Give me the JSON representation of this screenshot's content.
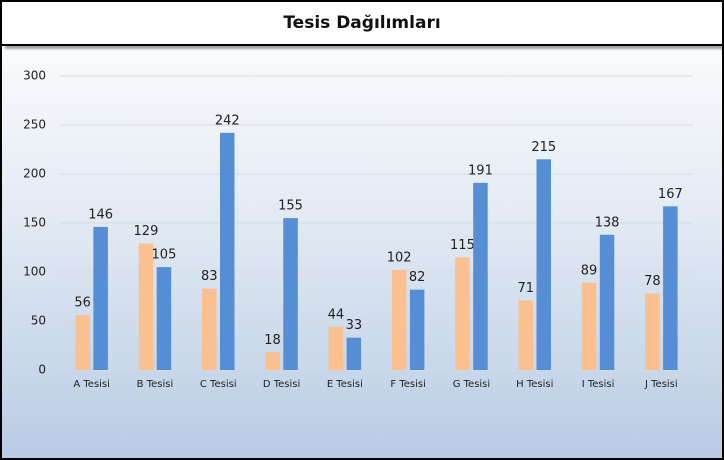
{
  "chart_data": {
    "type": "bar",
    "title": "Tesis Dağılımları",
    "categories": [
      "A Tesisi",
      "B Tesisi",
      "C Tesisi",
      "D Tesisi",
      "E Tesisi",
      "F Tesisi",
      "G Tesisi",
      "H Tesisi",
      "I Tesisi",
      "J Tesisi"
    ],
    "series": [
      {
        "color": "#fac090",
        "values": [
          56,
          129,
          83,
          18,
          44,
          102,
          115,
          71,
          89,
          78
        ]
      },
      {
        "color": "#558ed5",
        "values": [
          146,
          105,
          242,
          155,
          33,
          82,
          191,
          215,
          138,
          167
        ]
      }
    ],
    "ylim": [
      0,
      300
    ],
    "yticks": [
      0,
      50,
      100,
      150,
      200,
      250,
      300
    ],
    "grid": true
  }
}
